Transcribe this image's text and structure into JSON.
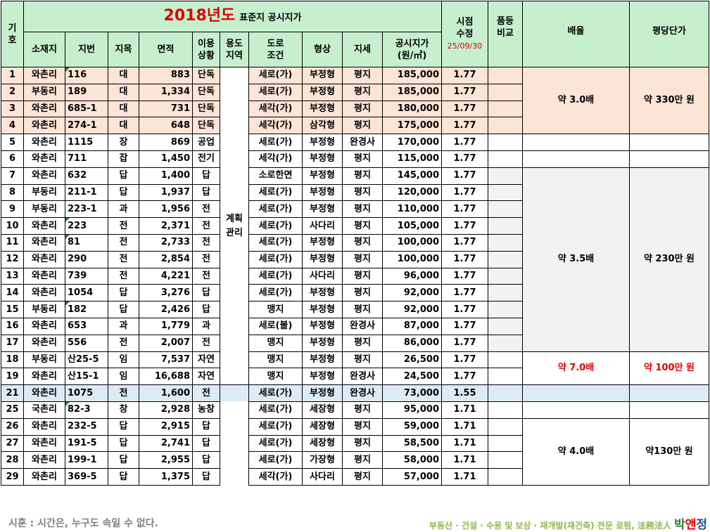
{
  "header": {
    "gi": "기",
    "ho": "호",
    "year_title": "2018년도",
    "subtitle": "표준지 공시지가",
    "sijeom1": "시점",
    "sijeom2": "수정",
    "sijeom_date": "25/09/30",
    "pumdeung1": "품등",
    "pumdeung2": "비교",
    "ratio": "배율",
    "unit_price": "평당단가",
    "col_sojaeji": "소재지",
    "col_jibeon": "지번",
    "col_jimok": "지목",
    "col_area": "면적",
    "col_use1": "이용",
    "col_use2": "상황",
    "col_zone1": "용도",
    "col_zone2": "지역",
    "col_road1": "도로",
    "col_road2": "조건",
    "col_shape": "형상",
    "col_terrain": "지세",
    "col_price1": "공시지가",
    "col_price2": "(원/㎡)"
  },
  "zone_label1": "계획",
  "zone_label2": "관리",
  "rows": [
    {
      "no": "1",
      "loc": "와촌리",
      "jibeon": "116",
      "jimok": "대",
      "area": "883",
      "use": "단독",
      "road": "세로(가)",
      "shape": "부정형",
      "terrain": "평지",
      "price": "185,000",
      "adj": "1.77",
      "mark": true
    },
    {
      "no": "2",
      "loc": "부동리",
      "jibeon": "189",
      "jimok": "대",
      "area": "1,334",
      "use": "단독",
      "road": "세로(가)",
      "shape": "부정형",
      "terrain": "평지",
      "price": "185,000",
      "adj": "1.77",
      "mark": false
    },
    {
      "no": "3",
      "loc": "와촌리",
      "jibeon": "685-1",
      "jimok": "대",
      "area": "731",
      "use": "단독",
      "road": "세각(가)",
      "shape": "부정형",
      "terrain": "평지",
      "price": "180,000",
      "adj": "1.77",
      "mark": false
    },
    {
      "no": "4",
      "loc": "와촌리",
      "jibeon": "274-1",
      "jimok": "대",
      "area": "648",
      "use": "단독",
      "road": "세각(가)",
      "shape": "삼각형",
      "terrain": "평지",
      "price": "175,000",
      "adj": "1.77",
      "mark": false
    },
    {
      "no": "5",
      "loc": "와촌리",
      "jibeon": "1115",
      "jimok": "장",
      "area": "869",
      "use": "공업",
      "road": "세로(가)",
      "shape": "부정형",
      "terrain": "완경사",
      "price": "170,000",
      "adj": "1.77",
      "mark": false
    },
    {
      "no": "6",
      "loc": "와촌리",
      "jibeon": "711",
      "jimok": "잡",
      "area": "1,450",
      "use": "전기",
      "road": "세각(가)",
      "shape": "부정형",
      "terrain": "평지",
      "price": "115,000",
      "adj": "1.77",
      "mark": false
    },
    {
      "no": "7",
      "loc": "와촌리",
      "jibeon": "632",
      "jimok": "답",
      "area": "1,400",
      "use": "답",
      "road": "소로한면",
      "shape": "부정형",
      "terrain": "평지",
      "price": "145,000",
      "adj": "1.77",
      "mark": false
    },
    {
      "no": "8",
      "loc": "부동리",
      "jibeon": "211-1",
      "jimok": "답",
      "area": "1,937",
      "use": "답",
      "road": "세로(가)",
      "shape": "부정형",
      "terrain": "평지",
      "price": "120,000",
      "adj": "1.77",
      "mark": false
    },
    {
      "no": "9",
      "loc": "부동리",
      "jibeon": "223-1",
      "jimok": "과",
      "area": "1,956",
      "use": "전",
      "road": "세로(가)",
      "shape": "부정형",
      "terrain": "평지",
      "price": "110,000",
      "adj": "1.77",
      "mark": false
    },
    {
      "no": "10",
      "loc": "와촌리",
      "jibeon": "223",
      "jimok": "전",
      "area": "2,371",
      "use": "전",
      "road": "세로(가)",
      "shape": "사다리",
      "terrain": "평지",
      "price": "105,000",
      "adj": "1.77",
      "mark": true
    },
    {
      "no": "11",
      "loc": "와촌리",
      "jibeon": "81",
      "jimok": "전",
      "area": "2,733",
      "use": "전",
      "road": "세로(가)",
      "shape": "부정형",
      "terrain": "평지",
      "price": "100,000",
      "adj": "1.77",
      "mark": true
    },
    {
      "no": "12",
      "loc": "와촌리",
      "jibeon": "290",
      "jimok": "전",
      "area": "2,854",
      "use": "전",
      "road": "세로(가)",
      "shape": "부정형",
      "terrain": "평지",
      "price": "100,000",
      "adj": "1.77",
      "mark": false
    },
    {
      "no": "13",
      "loc": "와촌리",
      "jibeon": "739",
      "jimok": "전",
      "area": "4,221",
      "use": "전",
      "road": "세로(가)",
      "shape": "사다리",
      "terrain": "평지",
      "price": "96,000",
      "adj": "1.77",
      "mark": false
    },
    {
      "no": "14",
      "loc": "와촌리",
      "jibeon": "1054",
      "jimok": "답",
      "area": "3,276",
      "use": "답",
      "road": "세로(가)",
      "shape": "부정형",
      "terrain": "평지",
      "price": "92,000",
      "adj": "1.77",
      "mark": false
    },
    {
      "no": "15",
      "loc": "부동리",
      "jibeon": "182",
      "jimok": "답",
      "area": "2,426",
      "use": "답",
      "road": "맹지",
      "shape": "부정형",
      "terrain": "평지",
      "price": "92,000",
      "adj": "1.77",
      "mark": true
    },
    {
      "no": "16",
      "loc": "와촌리",
      "jibeon": "653",
      "jimok": "과",
      "area": "1,779",
      "use": "과",
      "road": "세로(불)",
      "shape": "부정형",
      "terrain": "완경사",
      "price": "87,000",
      "adj": "1.77",
      "mark": false
    },
    {
      "no": "17",
      "loc": "와촌리",
      "jibeon": "556",
      "jimok": "전",
      "area": "2,007",
      "use": "전",
      "road": "맹지",
      "shape": "부정형",
      "terrain": "평지",
      "price": "86,000",
      "adj": "1.77",
      "mark": false
    },
    {
      "no": "18",
      "loc": "부동리",
      "jibeon": "산25-5",
      "jimok": "임",
      "area": "7,537",
      "use": "자연",
      "road": "맹지",
      "shape": "부정형",
      "terrain": "평지",
      "price": "26,500",
      "adj": "1.77",
      "mark": false
    },
    {
      "no": "19",
      "loc": "와촌리",
      "jibeon": "산15-1",
      "jimok": "임",
      "area": "16,688",
      "use": "자연",
      "road": "맹지",
      "shape": "부정형",
      "terrain": "완경사",
      "price": "24,500",
      "adj": "1.77",
      "mark": false
    },
    {
      "no": "21",
      "loc": "와촌리",
      "jibeon": "1075",
      "jimok": "전",
      "area": "1,600",
      "use": "전",
      "road": "세로(가)",
      "shape": "부정형",
      "terrain": "완경사",
      "price": "73,000",
      "adj": "1.55",
      "mark": false
    },
    {
      "no": "25",
      "loc": "국촌리",
      "jibeon": "82-3",
      "jimok": "창",
      "area": "2,928",
      "use": "농창",
      "road": "세로(가)",
      "shape": "세장형",
      "terrain": "평지",
      "price": "95,000",
      "adj": "1.71",
      "mark": true
    },
    {
      "no": "26",
      "loc": "와촌리",
      "jibeon": "232-5",
      "jimok": "답",
      "area": "2,915",
      "use": "답",
      "road": "세로(가)",
      "shape": "세장형",
      "terrain": "평지",
      "price": "59,000",
      "adj": "1.71",
      "mark": false
    },
    {
      "no": "27",
      "loc": "와촌리",
      "jibeon": "191-5",
      "jimok": "답",
      "area": "2,741",
      "use": "답",
      "road": "세로(가)",
      "shape": "세장형",
      "terrain": "평지",
      "price": "58,500",
      "adj": "1.71",
      "mark": false
    },
    {
      "no": "28",
      "loc": "와촌리",
      "jibeon": "199-1",
      "jimok": "답",
      "area": "2,955",
      "use": "답",
      "road": "세로(가)",
      "shape": "가장형",
      "terrain": "평지",
      "price": "58,000",
      "adj": "1.71",
      "mark": false
    },
    {
      "no": "29",
      "loc": "와촌리",
      "jibeon": "369-5",
      "jimok": "답",
      "area": "1,375",
      "use": "답",
      "road": "세각(가)",
      "shape": "사다리",
      "terrain": "평지",
      "price": "57,000",
      "adj": "1.71",
      "mark": false
    }
  ],
  "groups": {
    "g1_ratio": "약 3.0배",
    "g1_price": "약 330만 원",
    "g2_ratio": "약 3.5배",
    "g2_price": "약 230만 원",
    "g3_ratio": "약 7.0배",
    "g3_price": "약 100만 원",
    "g4_ratio": "약 4.0배",
    "g4_price": "약130만 원"
  },
  "footer": {
    "motto": "시훈 : 시간은, 누구도 속일 수 없다.",
    "tagline": "부동산 · 건설 · 수용 및 보상 · 재개발(재건축) 전문 로펌, 法務法人",
    "name1": "박",
    "name2": "앤",
    "name3": "정"
  },
  "colors": {
    "header_bg": "#c6efce",
    "highlight_pink": "#fce4d6",
    "highlight_blue": "#ddebf7",
    "accent_red": "#e00000"
  }
}
